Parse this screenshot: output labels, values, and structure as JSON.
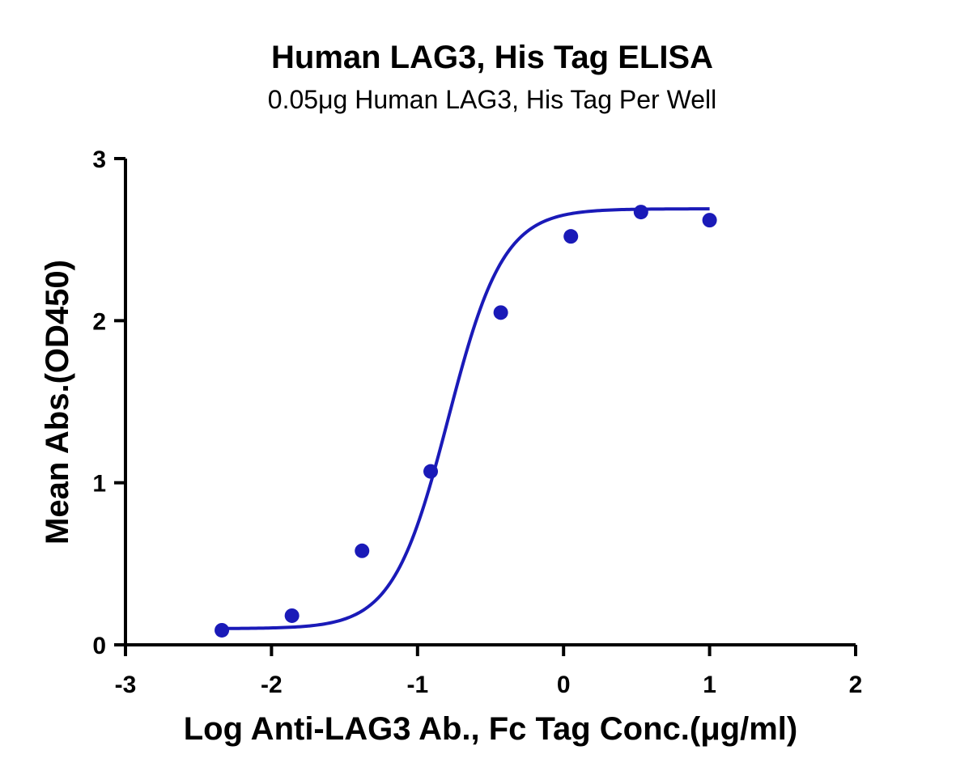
{
  "chart_data": {
    "type": "scatter",
    "title": "Human LAG3, His Tag ELISA",
    "subtitle": "0.05μg Human LAG3, His Tag Per Well",
    "xlabel": "Log Anti-LAG3 Ab., Fc Tag Conc.(μg/ml)",
    "ylabel": "Mean Abs.(OD450)",
    "xlim": [
      -3,
      2
    ],
    "ylim": [
      0,
      3
    ],
    "xticks": [
      -3,
      -2,
      -1,
      0,
      1,
      2
    ],
    "yticks": [
      0,
      1,
      2,
      3
    ],
    "grid": false,
    "series": [
      {
        "color": "#1a1ab8",
        "points": [
          {
            "x": -2.34,
            "y": 0.09
          },
          {
            "x": -1.86,
            "y": 0.18
          },
          {
            "x": -1.38,
            "y": 0.58
          },
          {
            "x": -0.91,
            "y": 1.07
          },
          {
            "x": -0.43,
            "y": 2.05
          },
          {
            "x": 0.05,
            "y": 2.52
          },
          {
            "x": 0.53,
            "y": 2.67
          },
          {
            "x": 1.0,
            "y": 2.62
          }
        ],
        "fit": {
          "model": "4PL",
          "bottom": 0.1,
          "top": 2.69,
          "logEC50": -0.79,
          "hill": 2.3,
          "x_range": [
            -2.34,
            1.0
          ]
        }
      }
    ]
  }
}
